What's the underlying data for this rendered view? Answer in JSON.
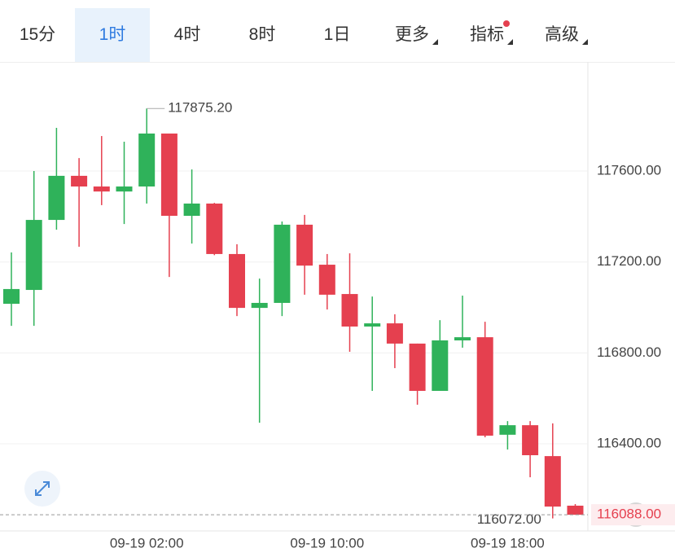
{
  "tabs": [
    "15分",
    "1时",
    "4时",
    "8时",
    "1日",
    "更多",
    "指标",
    "高级"
  ],
  "active_tab": 1,
  "chart_data": {
    "type": "candlestick",
    "categories": [
      null,
      null,
      null,
      null,
      null,
      null,
      "09-19 02:00",
      null,
      null,
      null,
      null,
      null,
      null,
      null,
      "09-19 10:00",
      null,
      null,
      null,
      null,
      null,
      null,
      null,
      "09-19 18:00",
      null,
      null,
      null
    ],
    "open": [
      117016,
      117077,
      117385,
      117579,
      117532,
      117510,
      117532,
      117765,
      117403,
      117457,
      117235,
      116998,
      117020,
      117364,
      117188,
      117059,
      116916,
      116930,
      116841,
      116633,
      116855,
      116869,
      116440,
      116482,
      116346,
      116128
    ],
    "high": [
      117242,
      117600,
      117790,
      117657,
      117754,
      117729,
      117875.2,
      117765,
      117607,
      117460,
      117278,
      117127,
      117378,
      117407,
      117235,
      117238,
      117048,
      116970,
      116841,
      116944,
      117052,
      116937,
      116500,
      116500,
      116490,
      116135
    ],
    "low": [
      116919,
      116919,
      117342,
      117267,
      117450,
      117367,
      117457,
      117134,
      117281,
      117230,
      116962,
      116493,
      116962,
      117056,
      116991,
      116805,
      116633,
      116733,
      116572,
      116633,
      116823,
      116429,
      116375,
      116253,
      116072,
      116088
    ],
    "close": [
      117081,
      117385,
      117579,
      117532,
      117510,
      117532,
      117765,
      117403,
      117457,
      117235,
      116998,
      117020,
      117364,
      117184,
      117056,
      116916,
      116930,
      116841,
      116633,
      116855,
      116869,
      116436,
      116482,
      116350,
      116124,
      116088
    ],
    "up_color": "#2fb25a",
    "down_color": "#e5404f",
    "ylim": [
      116024,
      118073
    ],
    "yticks": [
      {
        "value": 116400,
        "label": "116400.00"
      },
      {
        "value": 116800,
        "label": "116800.00"
      },
      {
        "value": 117200,
        "label": "117200.00"
      },
      {
        "value": 117600,
        "label": "117600.00"
      }
    ],
    "grid": true,
    "max_label": "117875.20",
    "min_label": "116072.00",
    "last_label": "116088.00"
  }
}
